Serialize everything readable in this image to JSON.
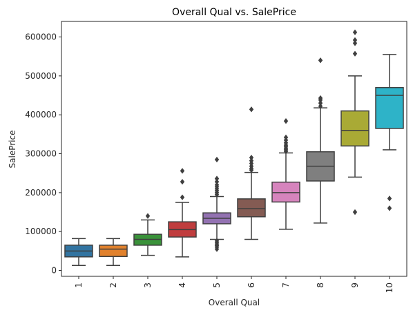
{
  "chart_data": {
    "type": "box",
    "title": "Overall Qual vs. SalePrice",
    "xlabel": "Overall Qual",
    "ylabel": "SalePrice",
    "ylim": [
      -15000,
      640000
    ],
    "yticks": [
      0,
      100000,
      200000,
      300000,
      400000,
      500000,
      600000
    ],
    "ytick_labels": [
      "0",
      "100000",
      "200000",
      "300000",
      "400000",
      "500000",
      "600000"
    ],
    "grid": false,
    "categories": [
      "1",
      "2",
      "3",
      "4",
      "5",
      "6",
      "7",
      "8",
      "9",
      "10"
    ],
    "boxes": [
      {
        "category": "1",
        "color": "#3274a1",
        "whislo": 13000,
        "q1": 35000,
        "med": 50000,
        "q3": 65000,
        "whishi": 82000,
        "fliers": []
      },
      {
        "category": "2",
        "color": "#e1812c",
        "whislo": 13000,
        "q1": 36000,
        "med": 55000,
        "q3": 65000,
        "whishi": 82000,
        "fliers": []
      },
      {
        "category": "3",
        "color": "#3a923a",
        "whislo": 39000,
        "q1": 65000,
        "med": 80000,
        "q3": 93000,
        "whishi": 130000,
        "fliers": [
          140000
        ]
      },
      {
        "category": "4",
        "color": "#c03d3e",
        "whislo": 35000,
        "q1": 86000,
        "med": 105000,
        "q3": 125000,
        "whishi": 175000,
        "fliers": [
          188000,
          228000,
          256000
        ]
      },
      {
        "category": "5",
        "color": "#9372b2",
        "whislo": 80000,
        "q1": 120000,
        "med": 134000,
        "q3": 148000,
        "whishi": 190000,
        "fliers": [
          55000,
          60000,
          64000,
          68000,
          72000,
          76000,
          195000,
          200000,
          205000,
          210000,
          215000,
          220000,
          228000,
          236000,
          285000
        ]
      },
      {
        "category": "6",
        "color": "#845b53",
        "whislo": 80000,
        "q1": 138000,
        "med": 159000,
        "q3": 184000,
        "whishi": 252000,
        "fliers": [
          258000,
          262000,
          268000,
          275000,
          282000,
          290000,
          414000
        ]
      },
      {
        "category": "7",
        "color": "#d684bd",
        "whislo": 106000,
        "q1": 176000,
        "med": 200000,
        "q3": 227000,
        "whishi": 302000,
        "fliers": [
          306000,
          310000,
          314000,
          318000,
          322000,
          328000,
          335000,
          342000,
          384000
        ]
      },
      {
        "category": "8",
        "color": "#7f7f7f",
        "whislo": 122000,
        "q1": 230000,
        "med": 268000,
        "q3": 305000,
        "whishi": 418000,
        "fliers": [
          422000,
          430000,
          438000,
          443000,
          540000
        ]
      },
      {
        "category": "9",
        "color": "#a9aa35",
        "whislo": 240000,
        "q1": 320000,
        "med": 360000,
        "q3": 410000,
        "whishi": 500000,
        "fliers": [
          150000,
          557000,
          584000,
          592000,
          612000
        ]
      },
      {
        "category": "10",
        "color": "#2eb3c8",
        "whislo": 310000,
        "q1": 365000,
        "med": 450000,
        "q3": 470000,
        "whishi": 555000,
        "fliers": [
          160000,
          185000
        ]
      }
    ]
  }
}
